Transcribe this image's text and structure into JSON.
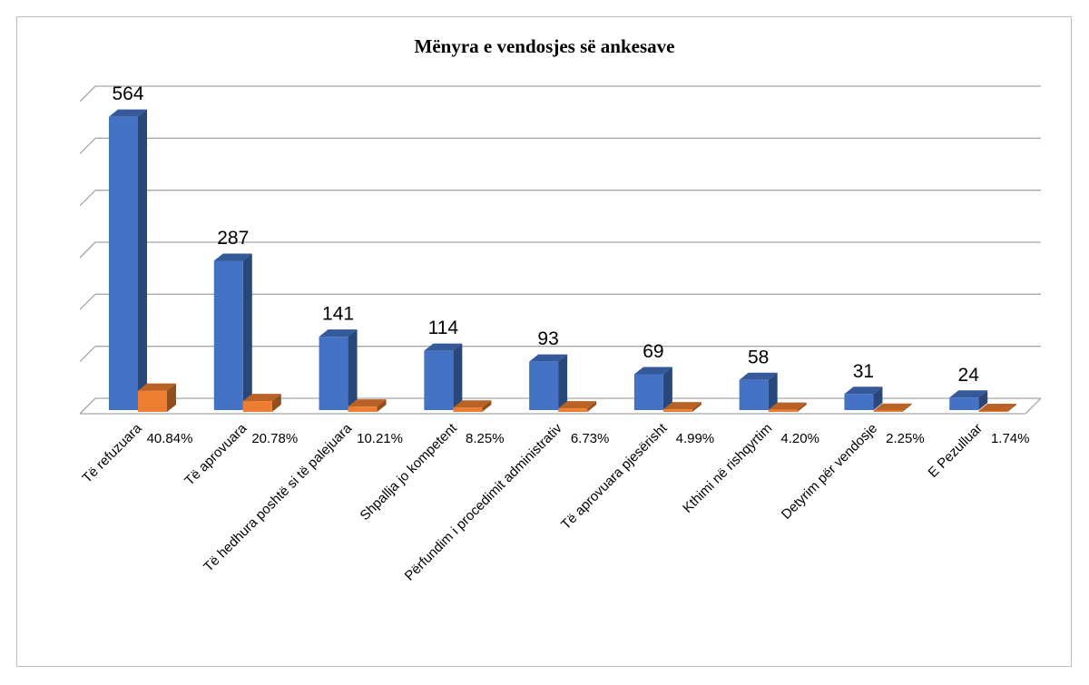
{
  "chart_data": {
    "type": "bar3d",
    "title": "Mënyra e vendosjes së ankesave",
    "categories": [
      "Të refuzuara",
      "Të aprovuara",
      "Të hedhura poshtë si të palejuara",
      "Shpallja jo kompetent",
      "Përfundim i procedimit administrativ",
      "Të aprovuara pjesërisht",
      "Kthimi në rishqyrtim",
      "Detyrim për vendosje",
      "E Pezulluar"
    ],
    "series": [
      {
        "color": "#4472c4",
        "values": [
          564,
          287,
          141,
          114,
          93,
          69,
          58,
          31,
          24
        ]
      },
      {
        "color": "#ed7d31",
        "values": [
          40.84,
          20.78,
          10.21,
          8.25,
          6.73,
          4.99,
          4.2,
          2.25,
          1.74
        ],
        "value_labels": [
          "40.84%",
          "20.78%",
          "10.21%",
          "8.25%",
          "6.73%",
          "4.99%",
          "4.20%",
          "2.25%",
          "1.74%"
        ]
      }
    ],
    "ylim": [
      0,
      600
    ],
    "yticks": [
      0,
      100,
      200,
      300,
      400,
      500,
      600
    ],
    "grid": true
  }
}
